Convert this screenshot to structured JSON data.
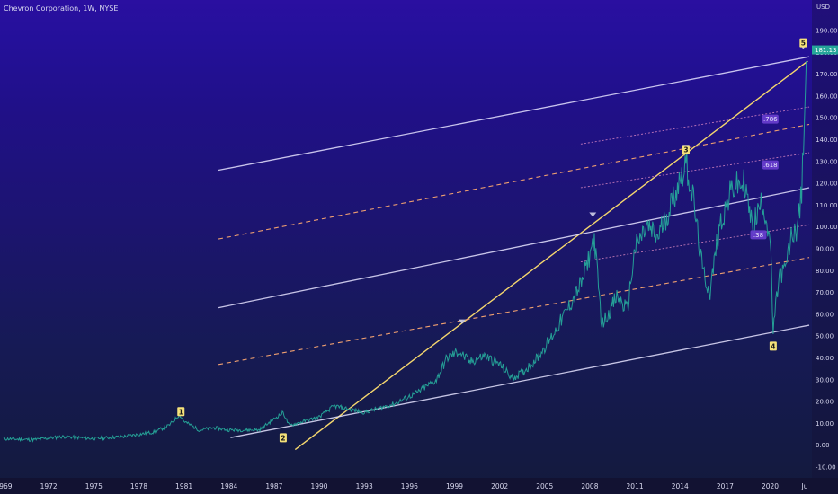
{
  "header": {
    "title": "Chevron Corporation, 1W, NYSE"
  },
  "axes": {
    "y_unit": "USD",
    "y_ticks": [
      "190.00",
      "180.00",
      "170.00",
      "160.00",
      "150.00",
      "140.00",
      "130.00",
      "120.00",
      "110.00",
      "100.00",
      "90.00",
      "80.00",
      "70.00",
      "60.00",
      "50.00",
      "40.00",
      "30.00",
      "20.00",
      "10.00",
      "0.00",
      "-10.00"
    ],
    "x_ticks": [
      "1969",
      "1972",
      "1975",
      "1978",
      "1981",
      "1984",
      "1987",
      "1990",
      "1993",
      "1996",
      "1999",
      "2002",
      "2005",
      "2008",
      "2011",
      "2014",
      "2017",
      "2020",
      "Ju"
    ]
  },
  "last_price": "181.13",
  "wave_labels": [
    "1",
    "2",
    "3",
    "4",
    "5"
  ],
  "fib_labels": [
    ".786",
    ".618",
    ".38"
  ],
  "colors": {
    "price_up": "#26a69a",
    "price_down": "#ef5350",
    "trendline": "#f5d76e",
    "channel": "#e6e3ff",
    "fib_dash": "#f0a070",
    "label_bg": "#f6e27a",
    "price_tag": "#26a69a"
  },
  "chart_data": {
    "type": "line",
    "title": "Chevron Corporation, 1W, NYSE",
    "xlabel": "",
    "ylabel": "USD",
    "ylim": [
      -10,
      190
    ],
    "xlim": [
      1969,
      2022.6
    ],
    "grid": false,
    "series": [
      {
        "x": [
          1969,
          1971,
          1973,
          1975,
          1977,
          1979,
          1980,
          1980.7,
          1981,
          1982,
          1983,
          1984,
          1986,
          1987.6,
          1988,
          1990,
          1991,
          1993,
          1995,
          1996.5,
          1997.8,
          1998.5,
          1999.3,
          2000,
          2001,
          2002,
          2002.8,
          2003.5,
          2004.5,
          2005.5,
          2006.5,
          2007.5,
          2008.3,
          2008.8,
          2009.2,
          2009.8,
          2010.5,
          2011,
          2011.8,
          2012.5,
          2013.5,
          2014.4,
          2014.9,
          2015.5,
          2016,
          2016.6,
          2017.5,
          2018.3,
          2018.8,
          2019.5,
          2020,
          2020.2,
          2020.6,
          2021,
          2021.4,
          2021.8,
          2022.1,
          2022.4
        ],
        "values": [
          3,
          2.5,
          4,
          3,
          4,
          6,
          9,
          14,
          11,
          7,
          8,
          7,
          7,
          15,
          9,
          13,
          18,
          15,
          19,
          24,
          30,
          40,
          43,
          38,
          41,
          37,
          31,
          33,
          40,
          50,
          62,
          75,
          95,
          55,
          60,
          68,
          62,
          90,
          100,
          95,
          112,
          130,
          112,
          80,
          70,
          100,
          118,
          120,
          100,
          112,
          95,
          52,
          78,
          80,
          95,
          100,
          115,
          176
        ]
      }
    ],
    "annotations": {
      "waves": [
        {
          "label": "1",
          "x": 1980.8,
          "y": 15
        },
        {
          "label": "2",
          "x": 1987.6,
          "y": 3
        },
        {
          "label": "3",
          "x": 2014.4,
          "y": 135
        },
        {
          "label": "4",
          "x": 2020.2,
          "y": 45
        },
        {
          "label": "5",
          "x": 2022.2,
          "y": 184
        }
      ],
      "fib": [
        {
          "label": ".786",
          "x": 2019.6,
          "y": 149
        },
        {
          "label": ".618",
          "x": 2019.6,
          "y": 128
        },
        {
          "label": ".38",
          "x": 2018.8,
          "y": 96
        }
      ],
      "pivots": [
        {
          "x": 1999.5,
          "y": 56
        },
        {
          "x": 2008.2,
          "y": 105
        },
        {
          "x": 2014.4,
          "y": 136
        },
        {
          "x": 2022.2,
          "y": 182
        }
      ],
      "lines": [
        {
          "kind": "trendline",
          "x": [
            1988.4,
            2022.5
          ],
          "y": [
            -2,
            176
          ]
        },
        {
          "kind": "channel",
          "x": [
            1984.1,
            2022.6
          ],
          "y": [
            3.5,
            55
          ]
        },
        {
          "kind": "channel",
          "x": [
            1983.3,
            2022.6
          ],
          "y": [
            63,
            118
          ]
        },
        {
          "kind": "channel",
          "x": [
            1983.3,
            2022.6
          ],
          "y": [
            126,
            178
          ]
        },
        {
          "kind": "fib",
          "x": [
            1983.3,
            2022.6
          ],
          "y": [
            37,
            86
          ]
        },
        {
          "kind": "fib",
          "x": [
            1983.3,
            2022.6
          ],
          "y": [
            94.5,
            147
          ]
        },
        {
          "kind": "fibthin",
          "x": [
            2007.4,
            2022.6
          ],
          "y": [
            84,
            101
          ]
        },
        {
          "kind": "fibthin",
          "x": [
            2007.4,
            2022.6
          ],
          "y": [
            118,
            134
          ]
        },
        {
          "kind": "fibthin",
          "x": [
            2007.4,
            2022.6
          ],
          "y": [
            138,
            155
          ]
        }
      ]
    }
  }
}
